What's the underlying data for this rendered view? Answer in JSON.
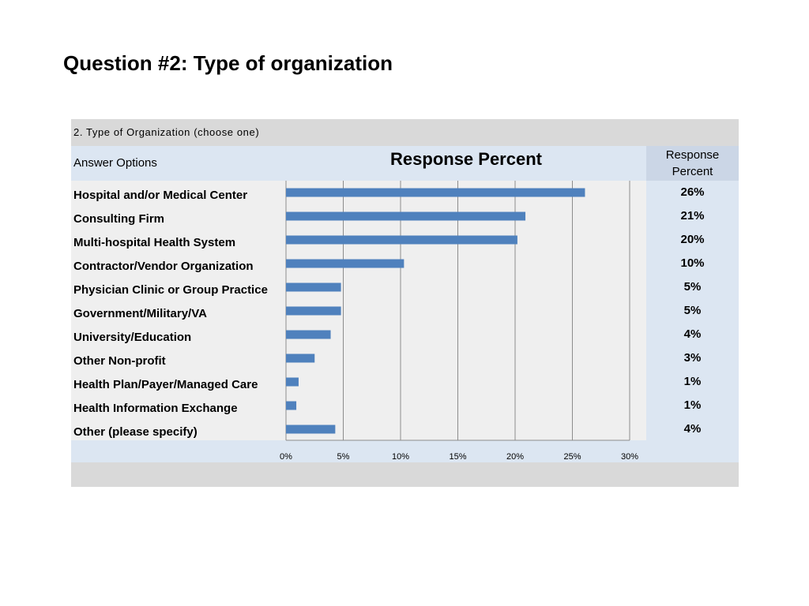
{
  "page": {
    "title": "Question #2: Type of organization"
  },
  "table": {
    "question": "2. Type of Organization (choose one)",
    "answer_options_header": "Answer Options",
    "response_percent_header": "Response Percent",
    "rows": [
      {
        "label": "Hospital and/or Medical Center",
        "percent": "26%"
      },
      {
        "label": "Consulting Firm",
        "percent": "21%"
      },
      {
        "label": "Multi-hospital Health System",
        "percent": "20%"
      },
      {
        "label": "Contractor/Vendor Organization",
        "percent": "10%"
      },
      {
        "label": "Physician Clinic or Group Practice",
        "percent": "5%"
      },
      {
        "label": "Government/Military/VA",
        "percent": "5%"
      },
      {
        "label": "University/Education",
        "percent": "4%"
      },
      {
        "label": "Other Non-profit",
        "percent": "3%"
      },
      {
        "label": "Health Plan/Payer/Managed Care",
        "percent": "1%"
      },
      {
        "label": "Health Information Exchange",
        "percent": "1%"
      },
      {
        "label": "Other (please specify)",
        "percent": "4%"
      }
    ]
  },
  "chart_data": {
    "type": "bar",
    "orientation": "horizontal",
    "title": "Response Percent",
    "categories": [
      "Hospital and/or Medical Center",
      "Consulting Firm",
      "Multi-hospital Health System",
      "Contractor/Vendor Organization",
      "Physician Clinic or Group Practice",
      "Government/Military/VA",
      "University/Education",
      "Other Non-profit",
      "Health Plan/Payer/Managed Care",
      "Health Information Exchange",
      "Other (please specify)"
    ],
    "values": [
      26.1,
      20.9,
      20.2,
      10.3,
      4.8,
      4.8,
      3.9,
      2.5,
      1.1,
      0.9,
      4.3
    ],
    "xlim": [
      0,
      30
    ],
    "ticks": [
      0,
      5,
      10,
      15,
      20,
      25,
      30
    ],
    "tick_labels": [
      "0%",
      "5%",
      "10%",
      "15%",
      "20%",
      "25%",
      "30%"
    ],
    "gridlines": true,
    "legend": "none",
    "bar_color": "#4f81bd"
  }
}
